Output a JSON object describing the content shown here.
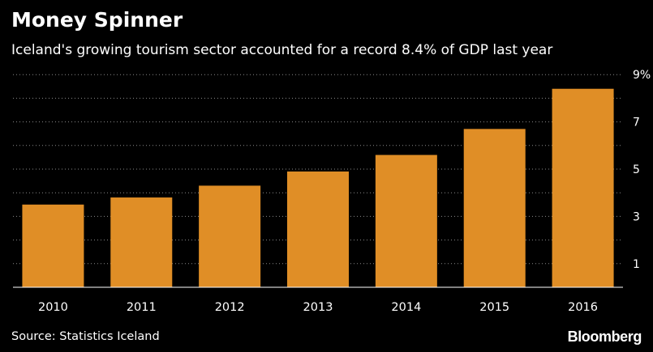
{
  "header": {
    "title": "Money Spinner",
    "subtitle": "Iceland's growing tourism sector accounted for a record 8.4% of GDP last year"
  },
  "footer": {
    "source": "Source: Statistics Iceland",
    "logo": "Bloomberg"
  },
  "colors": {
    "background": "#000000",
    "bar": "#E08E26",
    "text": "#FFFFFF",
    "grid": "#8A8A8A"
  },
  "chart_data": {
    "type": "bar",
    "title": "Money Spinner",
    "subtitle": "Iceland's growing tourism sector accounted for a record 8.4% of GDP last year",
    "xlabel": "",
    "ylabel": "",
    "categories": [
      "2010",
      "2011",
      "2012",
      "2013",
      "2014",
      "2015",
      "2016"
    ],
    "values": [
      3.5,
      3.8,
      4.3,
      4.9,
      5.6,
      6.7,
      8.4
    ],
    "ylim": [
      0,
      9
    ],
    "yticks": [
      {
        "value": 1,
        "label": "1"
      },
      {
        "value": 3,
        "label": "3"
      },
      {
        "value": 5,
        "label": "5"
      },
      {
        "value": 7,
        "label": "7"
      },
      {
        "value": 9,
        "label": "9%"
      }
    ],
    "grid": true,
    "y_axis_side": "right"
  }
}
